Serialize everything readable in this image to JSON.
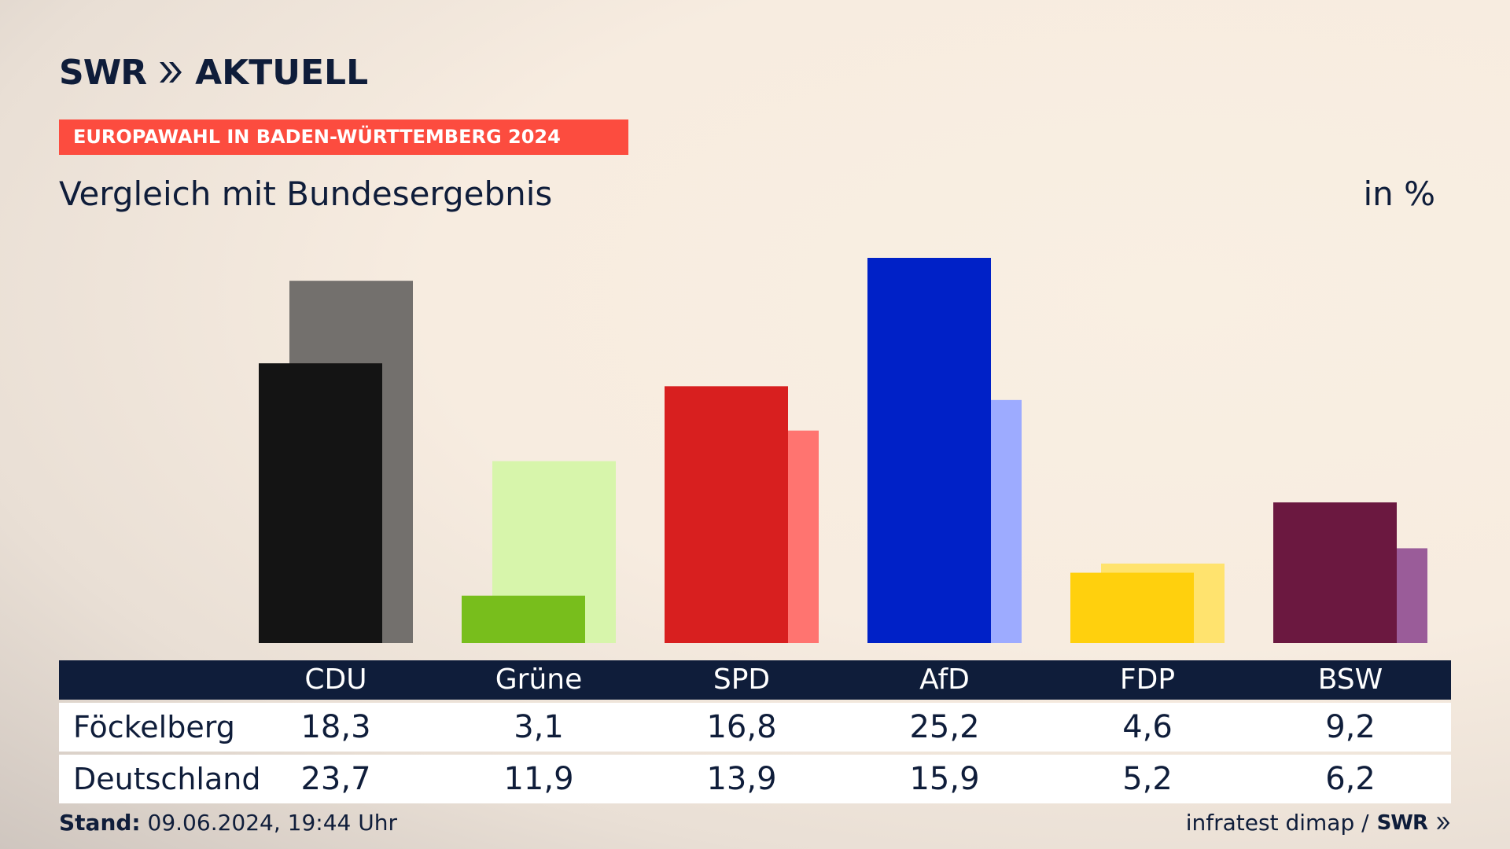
{
  "header": {
    "brand": "SWR",
    "section": "AKTUELL",
    "kicker": "EUROPAWAHL IN BADEN-WÜRTTEMBERG 2024",
    "subtitle": "Vergleich mit Bundesergebnis",
    "unit": "in %"
  },
  "footer": {
    "stand_label": "Stand:",
    "stand_value": "09.06.2024, 19:44 Uhr",
    "source": "infratest dimap /",
    "source_brand": "SWR"
  },
  "colors": {
    "navy": "#0f1d3a",
    "kicker": "#fc4c3f"
  },
  "chart_data": {
    "type": "bar",
    "categories": [
      "CDU",
      "Grüne",
      "SPD",
      "AfD",
      "FDP",
      "BSW"
    ],
    "series": [
      {
        "name": "Föckelberg",
        "values": [
          18.3,
          3.1,
          16.8,
          25.2,
          4.6,
          9.2
        ],
        "colors": [
          "#141414",
          "#78be1c",
          "#d81f1f",
          "#0021c7",
          "#ffd00d",
          "#6b1840"
        ]
      },
      {
        "name": "Deutschland",
        "values": [
          23.7,
          11.9,
          13.9,
          15.9,
          5.2,
          6.2
        ],
        "colors": [
          "#73706d",
          "#d7f5ab",
          "#ff7470",
          "#9dabff",
          "#ffe36e",
          "#9a5c99"
        ]
      }
    ],
    "xlabel": "",
    "ylabel": "in %",
    "ylim": [
      0,
      25.2
    ],
    "grid": false,
    "legend": "table-below"
  }
}
